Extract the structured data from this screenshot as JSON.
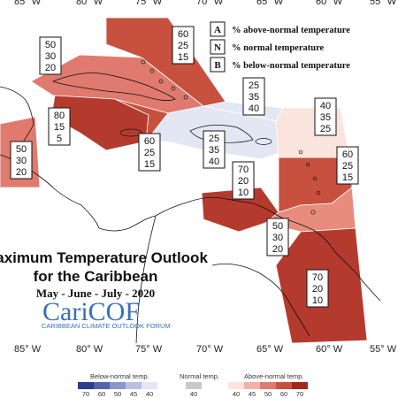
{
  "map": {
    "longitude_labels": [
      "85° W",
      "80° W",
      "75° W",
      "70° W",
      "65° W",
      "60° W",
      "55° W"
    ],
    "title_line1": "Maximum Temperature Outlook",
    "title_line2": "for the Caribbean",
    "period": "May - June - July - 2020"
  },
  "key": {
    "items": [
      {
        "letter": "A",
        "text": "% above-normal temperature"
      },
      {
        "letter": "N",
        "text": "% normal temperature"
      },
      {
        "letter": "B",
        "text": "% below-normal temperature"
      }
    ]
  },
  "regions": [
    {
      "name": "bahamas",
      "above": 60,
      "normal": 25,
      "below": 15,
      "color": "#c8503f"
    },
    {
      "name": "cuba",
      "above": 50,
      "normal": 30,
      "below": 20,
      "color": "#e07a6e"
    },
    {
      "name": "western-caribbean",
      "above": 80,
      "normal": 15,
      "below": 5,
      "color": "#b53a2e"
    },
    {
      "name": "central-america",
      "above": 50,
      "normal": 30,
      "below": 20,
      "color": "#e07a6e"
    },
    {
      "name": "jamaica-cayman",
      "above": 60,
      "normal": 25,
      "below": 15,
      "color": "#c8503f"
    },
    {
      "name": "turks-caicos",
      "above": 25,
      "normal": 35,
      "below": 40,
      "color": "#e3e7f4"
    },
    {
      "name": "hispaniola",
      "above": 25,
      "normal": 35,
      "below": 40,
      "color": "#e3e7f4"
    },
    {
      "name": "leeward-islands",
      "above": 40,
      "normal": 35,
      "below": 25,
      "color": "#fbe3de"
    },
    {
      "name": "windward-islands",
      "above": 60,
      "normal": 25,
      "below": 15,
      "color": "#c8503f"
    },
    {
      "name": "northern-south-america",
      "above": 70,
      "normal": 20,
      "below": 10,
      "color": "#b53a2e"
    },
    {
      "name": "trinidad-tobago",
      "above": 50,
      "normal": 30,
      "below": 20,
      "color": "#e88c7d"
    },
    {
      "name": "guianas",
      "above": 70,
      "normal": 20,
      "below": 10,
      "color": "#b53a2e"
    }
  ],
  "logo": {
    "wordmark": "CariCOF",
    "tagline": "CARIBBEAN CLIMATE OUTLOOK FORUM"
  },
  "legend": {
    "below_title": "Below-normal temp.",
    "normal_title": "Normal temp.",
    "above_title": "Above-normal temp.",
    "below_ticks": [
      "70",
      "60",
      "50",
      "45",
      "40"
    ],
    "normal_ticks": [
      "40"
    ],
    "above_ticks": [
      "40",
      "45",
      "50",
      "60",
      "70"
    ],
    "below_colors": [
      "#2b3d8f",
      "#5564ad",
      "#8a96cc",
      "#b9c0e2",
      "#e3e7f4"
    ],
    "normal_colors": [
      "#c8c8c8"
    ],
    "above_colors": [
      "#fbe3de",
      "#f2b3a7",
      "#e07a6e",
      "#c8503f",
      "#a4271c"
    ]
  }
}
